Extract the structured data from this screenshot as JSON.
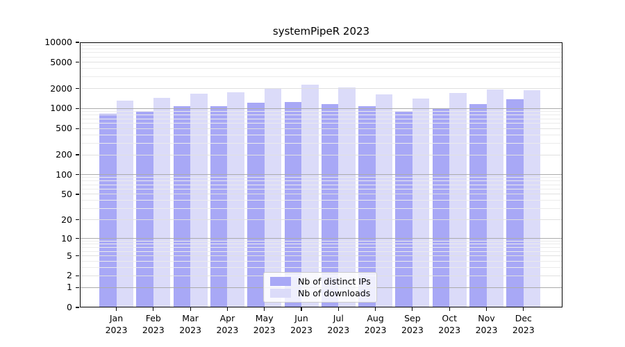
{
  "chart_data": {
    "type": "bar",
    "title": "systemPipeR 2023",
    "xlabel": "",
    "ylabel": "",
    "scale": "log1p",
    "ylim": [
      0,
      10000
    ],
    "yticks": [
      0,
      1,
      2,
      5,
      10,
      20,
      50,
      100,
      200,
      500,
      1000,
      2000,
      5000,
      10000
    ],
    "grid": "horizontal, log minor gridlines drawn over bars",
    "legend_position": "lower center inside plot",
    "categories": [
      "Jan",
      "Feb",
      "Mar",
      "Apr",
      "May",
      "Jun",
      "Jul",
      "Aug",
      "Sep",
      "Oct",
      "Nov",
      "Dec"
    ],
    "category_year": "2023",
    "series": [
      {
        "name": "Nb of distinct IPs",
        "color": "#a8a8f6",
        "values": [
          830,
          900,
          1080,
          1100,
          1220,
          1260,
          1160,
          1080,
          910,
          1000,
          1160,
          1370
        ]
      },
      {
        "name": "Nb of downloads",
        "color": "#dbdbf9",
        "values": [
          1310,
          1460,
          1670,
          1750,
          2030,
          2280,
          2070,
          1630,
          1410,
          1710,
          1930,
          1880
        ]
      }
    ],
    "colors": {
      "grid_major_power10": "#ababab",
      "grid_labeled_tick": "#e0e0e0",
      "grid_minor": "#ebebeb",
      "axis": "#000000",
      "background": "#ffffff"
    }
  }
}
